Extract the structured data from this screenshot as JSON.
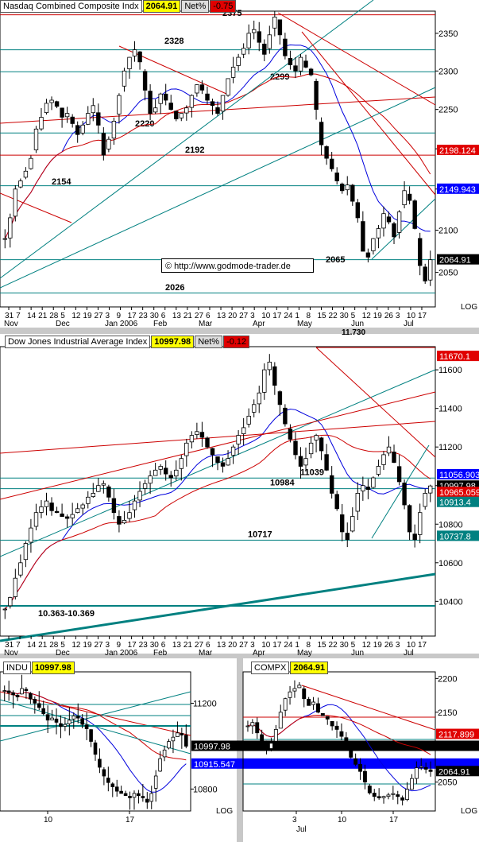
{
  "watermark": "© http://www.godmode-trader.de",
  "chart_data": [
    {
      "type": "candlestick",
      "title": "Nasdaq Combined Composite Indx",
      "last_value": "2064.91",
      "net_label": "Net%",
      "net_change": "-0.75",
      "scale_label": "LOG",
      "ylim": [
        2010,
        2380
      ],
      "y_ticks": [
        2050,
        2100,
        2150,
        2200,
        2250,
        2300,
        2350
      ],
      "x_tick_labels": [
        "31",
        "7",
        "14",
        "21",
        "28",
        "5",
        "12",
        "19",
        "27",
        "3",
        "9",
        "17",
        "23",
        "30",
        "6",
        "13",
        "21",
        "27",
        "6",
        "13",
        "20",
        "27",
        "3",
        "10",
        "17",
        "24",
        "1",
        "8",
        "15",
        "22",
        "30",
        "5",
        "12",
        "19",
        "26",
        "3",
        "10",
        "17"
      ],
      "month_labels": [
        "Nov",
        "Dec",
        "Jan 2006",
        "Feb",
        "Mar",
        "Apr",
        "May",
        "Jun",
        "Jul"
      ],
      "price_tags": [
        {
          "label": "2198.124",
          "value": 2198.124,
          "color": "#e00000"
        },
        {
          "label": "2149.943",
          "value": 2149.943,
          "color": "#0000ff"
        },
        {
          "label": "2064.91",
          "value": 2064.91,
          "color": "#000000"
        }
      ],
      "levels": [
        2375,
        2328,
        2299,
        2220,
        2192,
        2154,
        2065,
        2026
      ],
      "closes": [
        2090,
        2115,
        2150,
        2160,
        2172,
        2188,
        2225,
        2240,
        2258,
        2262,
        2254,
        2240,
        2245,
        2232,
        2218,
        2230,
        2245,
        2255,
        2230,
        2192,
        2212,
        2235,
        2268,
        2300,
        2318,
        2328,
        2312,
        2275,
        2245,
        2252,
        2270,
        2262,
        2250,
        2238,
        2245,
        2252,
        2268,
        2282,
        2275,
        2262,
        2255,
        2245,
        2268,
        2290,
        2305,
        2318,
        2330,
        2350,
        2355,
        2338,
        2322,
        2348,
        2372,
        2348,
        2320,
        2308,
        2300,
        2318,
        2305,
        2295,
        2250,
        2205,
        2188,
        2175,
        2160,
        2148,
        2155,
        2135,
        2115,
        2075,
        2068,
        2090,
        2102,
        2120,
        2110,
        2092,
        2122,
        2148,
        2136,
        2102,
        2058,
        2040,
        2064.91
      ]
    },
    {
      "type": "candlestick",
      "title": "Dow Jones Industrial Average Index",
      "last_value": "10997.98",
      "net_label": "Net%",
      "net_change": "-0.12",
      "top_label": "11.730",
      "ylim": [
        10220,
        11720
      ],
      "y_ticks": [
        10400,
        10600,
        10800,
        11000,
        11200,
        11400,
        11600
      ],
      "x_tick_labels": [
        "31",
        "7",
        "14",
        "21",
        "28",
        "5",
        "12",
        "19",
        "27",
        "3",
        "9",
        "17",
        "23",
        "30",
        "6",
        "13",
        "21",
        "27",
        "6",
        "13",
        "20",
        "27",
        "3",
        "10",
        "17",
        "24",
        "1",
        "8",
        "15",
        "22",
        "30",
        "5",
        "12",
        "19",
        "26",
        "3",
        "10",
        "17"
      ],
      "month_labels": [
        "Nov",
        "Dec",
        "Jan 2006",
        "Feb",
        "Mar",
        "Apr",
        "May",
        "Jun",
        "Jul"
      ],
      "price_tags": [
        {
          "label": "11670.1",
          "value": 11670.1,
          "color": "#e00000"
        },
        {
          "label": "11056.903",
          "value": 11056.903,
          "color": "#0000ff"
        },
        {
          "label": "10997.98",
          "value": 10997.98,
          "color": "#000000"
        },
        {
          "label": "10965.059",
          "value": 10965.059,
          "color": "#e00000"
        },
        {
          "label": "10913.4",
          "value": 10913.4,
          "color": "#008080"
        },
        {
          "label": "10737.8",
          "value": 10737.8,
          "color": "#008080"
        }
      ],
      "levels": [
        11039,
        10984,
        10717
      ],
      "range_label": "10.363-10.369",
      "closes": [
        10360,
        10420,
        10520,
        10600,
        10700,
        10780,
        10860,
        10890,
        10920,
        10870,
        10860,
        10840,
        10830,
        10850,
        10880,
        10900,
        10940,
        10960,
        11000,
        11010,
        10940,
        10860,
        10800,
        10820,
        10860,
        10920,
        10970,
        11010,
        11050,
        11080,
        11100,
        11060,
        11040,
        11080,
        11140,
        11220,
        11260,
        11280,
        11250,
        11200,
        11160,
        11120,
        11100,
        11140,
        11200,
        11260,
        11300,
        11360,
        11420,
        11480,
        11600,
        11640,
        11520,
        11420,
        11320,
        11240,
        11160,
        11100,
        11140,
        11220,
        11260,
        11180,
        11080,
        10960,
        10880,
        10760,
        10720,
        10840,
        10960,
        11000,
        10980,
        11040,
        11100,
        11160,
        11200,
        11120,
        11020,
        10900,
        10760,
        10720,
        10860,
        10960,
        10997.98
      ]
    },
    {
      "type": "candlestick",
      "title": "INDU",
      "last_value": "10997.98",
      "scale_label": "LOG",
      "ylim": [
        10700,
        11350
      ],
      "y_ticks": [
        10800,
        11200
      ],
      "x_tick_labels": [
        "10",
        "17"
      ],
      "price_tags": [
        {
          "label": "10997.98",
          "value": 10997.98,
          "color": "#000000"
        },
        {
          "label": "10915.547",
          "value": 10915.547,
          "color": "#0000ff"
        }
      ],
      "closes": [
        11260,
        11250,
        11240,
        11230,
        11270,
        11260,
        11220,
        11200,
        11180,
        11150,
        11120,
        11130,
        11110,
        11090,
        11100,
        11120,
        11140,
        11130,
        11100,
        11080,
        11020,
        10960,
        10900,
        10860,
        10830,
        10810,
        10790,
        10780,
        10770,
        10760,
        10780,
        10770,
        10760,
        10740,
        10780,
        10860,
        10940,
        10980,
        11020,
        11040,
        11060,
        11050,
        10997.98
      ]
    },
    {
      "type": "candlestick",
      "title": "COMPX",
      "last_value": "2064.91",
      "scale_label": "LOG",
      "x_month_label": "Jul",
      "ylim": [
        2010,
        2210
      ],
      "y_ticks": [
        2050,
        2100,
        2150,
        2200
      ],
      "x_tick_labels": [
        "3",
        "10",
        "17"
      ],
      "price_tags": [
        {
          "label": "2117.899",
          "value": 2117.899,
          "color": "#e00000"
        },
        {
          "label": "2064.91",
          "value": 2064.91,
          "color": "#000000"
        }
      ],
      "closes": [
        2130,
        2135,
        2120,
        2100,
        2095,
        2105,
        2125,
        2150,
        2170,
        2180,
        2185,
        2190,
        2170,
        2160,
        2165,
        2150,
        2145,
        2140,
        2130,
        2125,
        2115,
        2100,
        2085,
        2075,
        2065,
        2050,
        2035,
        2030,
        2028,
        2030,
        2032,
        2034,
        2030,
        2025,
        2040,
        2055,
        2070,
        2072,
        2068,
        2064.91
      ]
    }
  ]
}
